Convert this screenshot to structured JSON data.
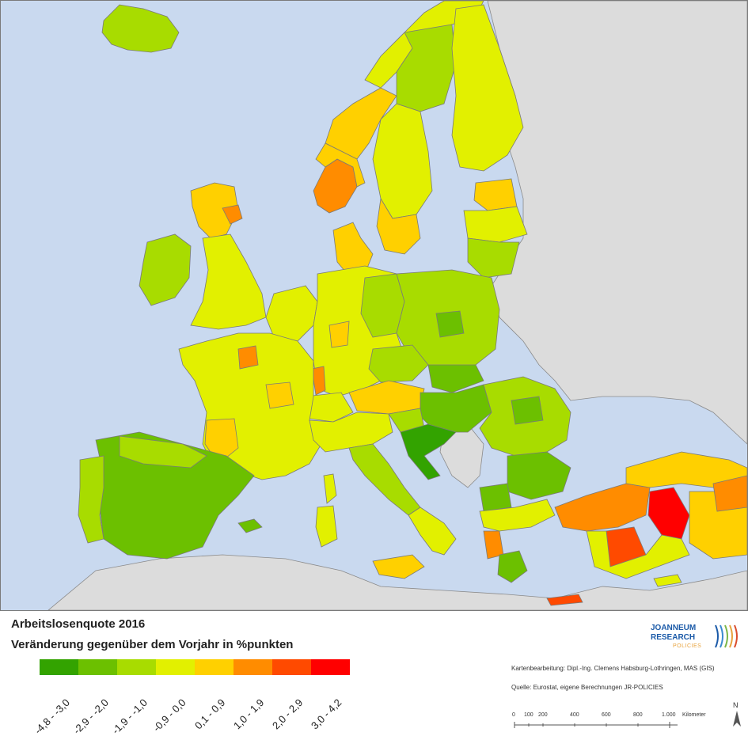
{
  "title_main": "Arbeitslosenquote 2016",
  "title_sub": "Veränderung gegenüber dem Vorjahr in %punkten",
  "legend": [
    {
      "label": "-4,8 - -3,0",
      "color": "#33a300"
    },
    {
      "label": "-2,9 - -2,0",
      "color": "#6cc000"
    },
    {
      "label": "-1,9 - -1,0",
      "color": "#a8dc00"
    },
    {
      "label": "-0,9 - 0,0",
      "color": "#e2f000"
    },
    {
      "label": "0,1 - 0,9",
      "color": "#ffd000"
    },
    {
      "label": "1,0 - 1,9",
      "color": "#ff8c00"
    },
    {
      "label": "2,0 - 2,9",
      "color": "#ff4a00"
    },
    {
      "label": "3,0 - 4,2",
      "color": "#ff0000"
    }
  ],
  "credits": {
    "map_by": "Kartenbearbeitung: Dipl.-Ing. Clemens Habsburg-Lothringen, MAS (GIS)",
    "source": "Quelle: Eurostat, eigene Berechnungen JR-POLICIES"
  },
  "logo": {
    "line1": "JOANNEUM",
    "line2": "RESEARCH",
    "line3": "POLICIES"
  },
  "scale": {
    "ticks": [
      "0",
      "100",
      "200",
      "400",
      "600",
      "800",
      "1.000"
    ],
    "unit": "Kilometer"
  },
  "north_label": "N",
  "colors": {
    "sea": "#c9d9ef",
    "non_eu_land": "#dcdcdc",
    "border": "#7a7a7a"
  }
}
